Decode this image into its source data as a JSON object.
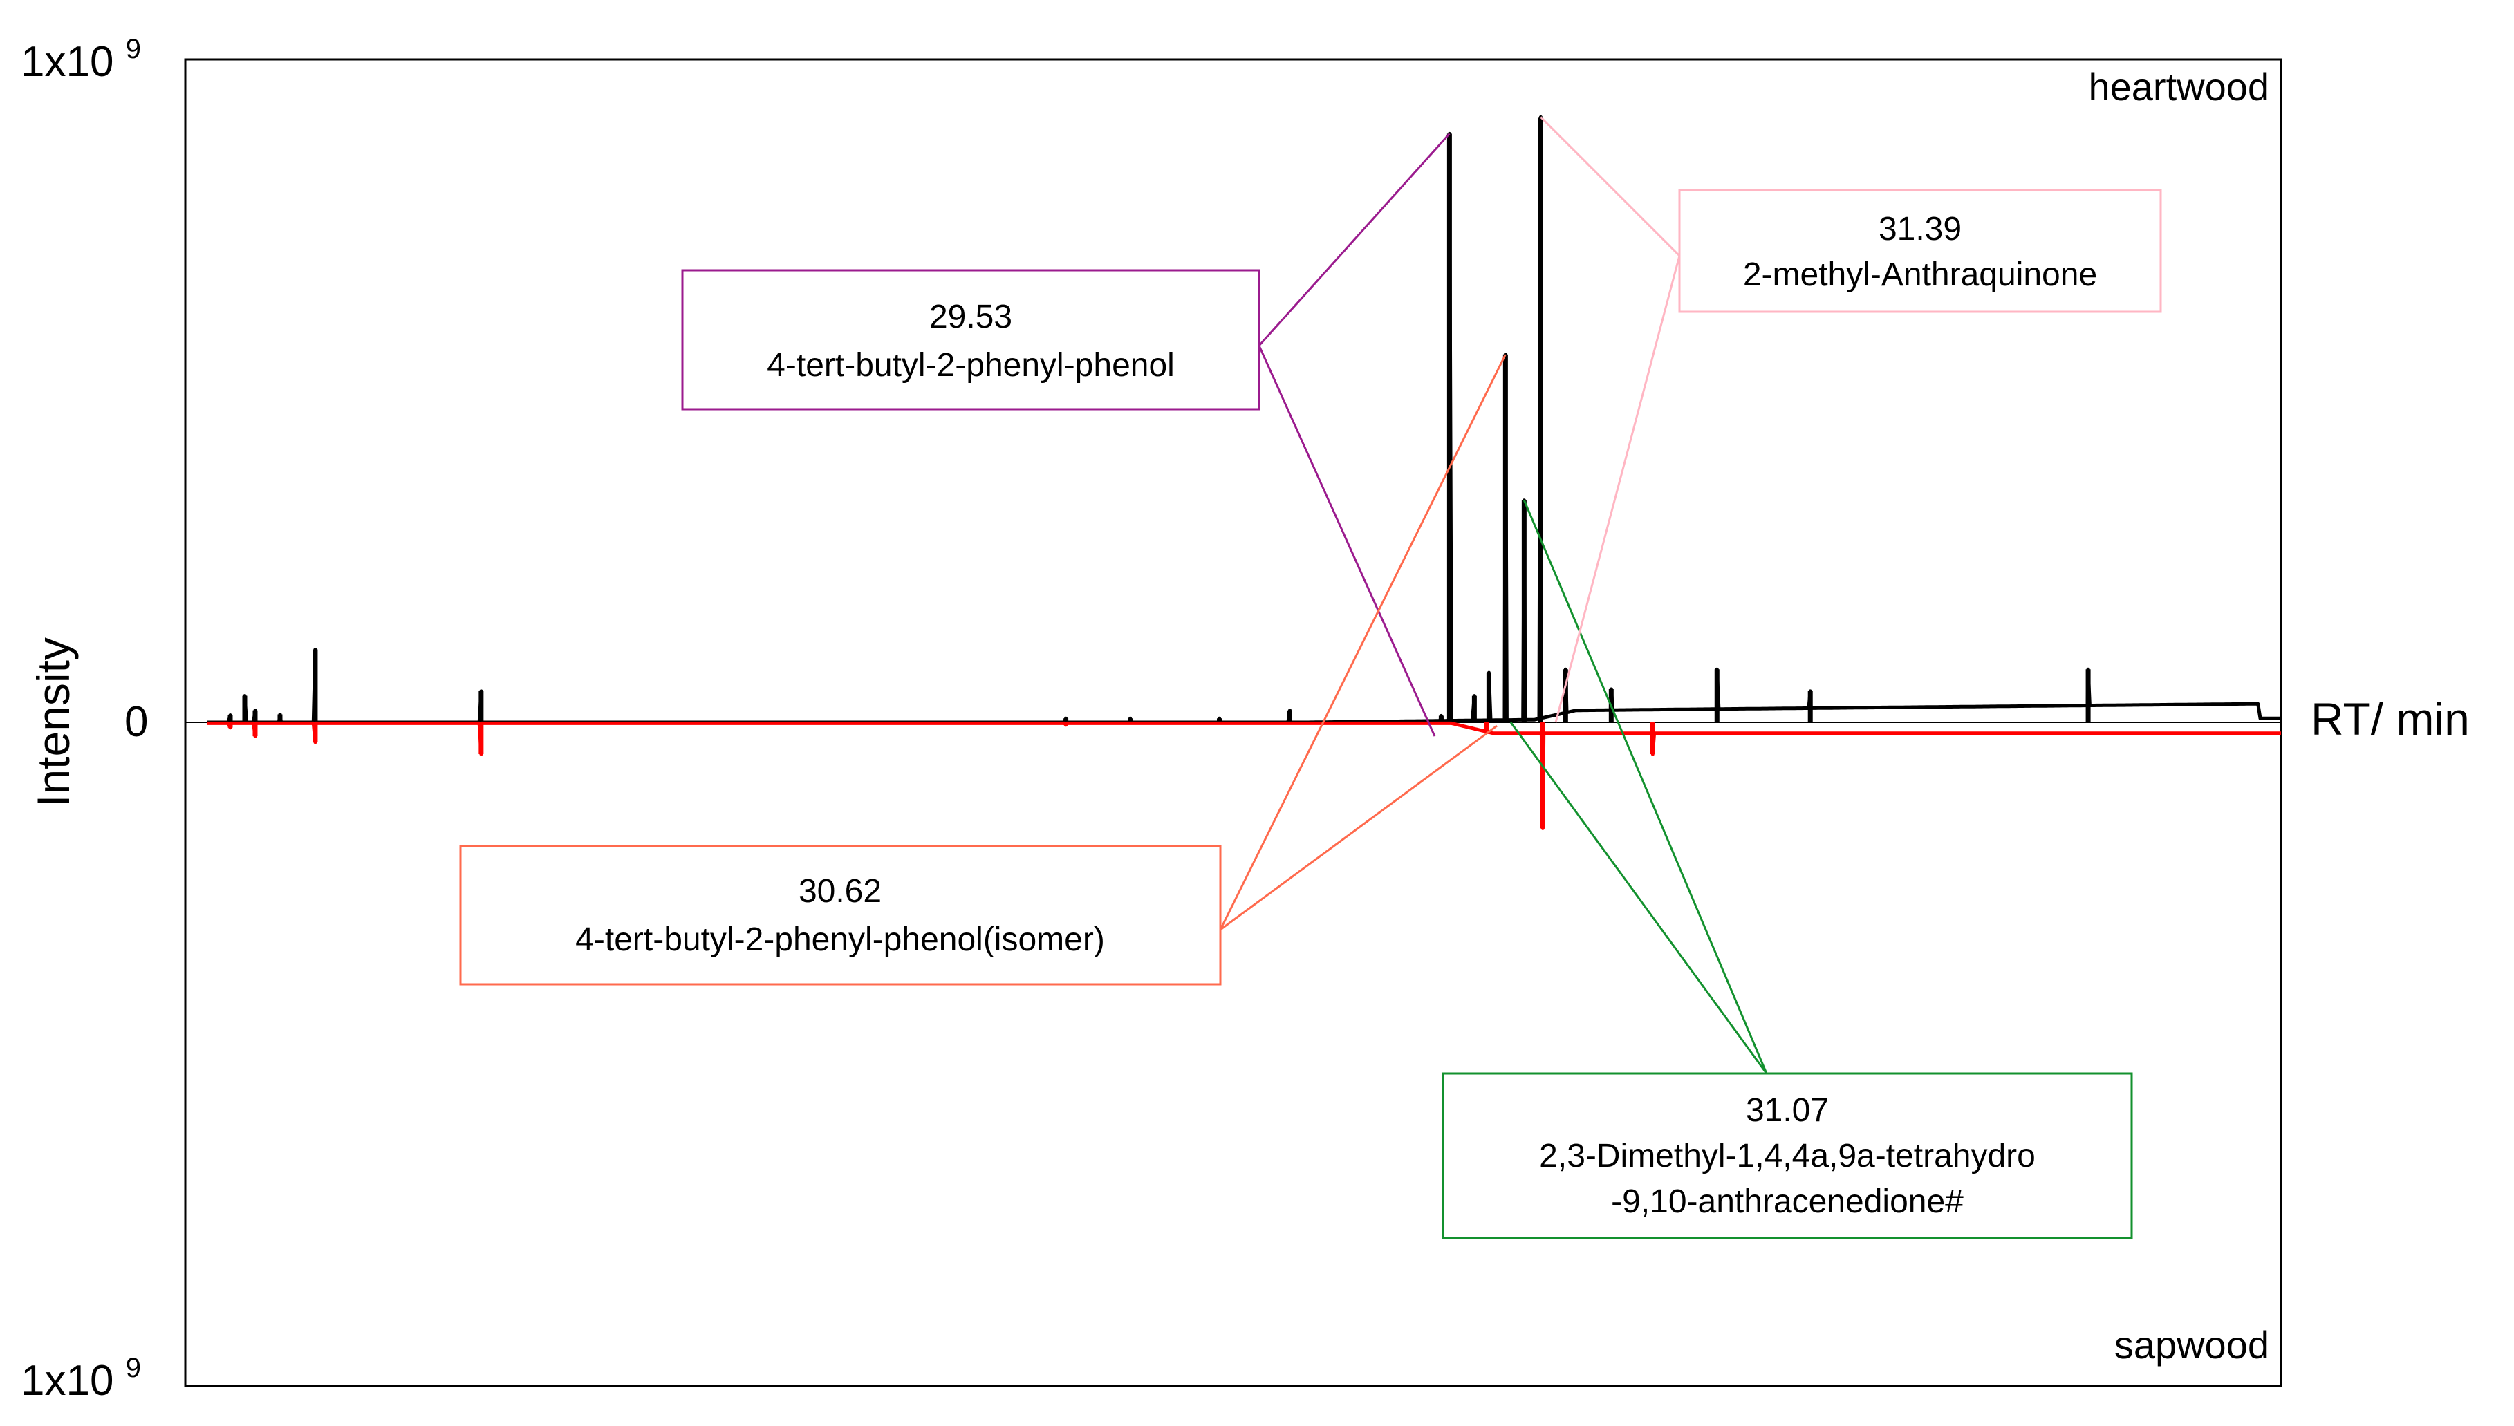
{
  "chart_data": {
    "type": "line",
    "xlabel": "RT/ min",
    "ylabel": "Intensity",
    "y_ticks": {
      "top": "1x10^9",
      "zero": "0",
      "bottom": "1x10^9"
    },
    "ylim": [
      -1000000000,
      1000000000
    ],
    "grid": false,
    "panel_labels": {
      "top": "heartwood",
      "bottom": "sapwood"
    },
    "series": [
      {
        "name": "heartwood",
        "color": "#000000",
        "direction": "up",
        "peaks": [
          {
            "at": 0.011,
            "height": 0.011
          },
          {
            "at": 0.018,
            "height": 0.04
          },
          {
            "at": 0.023,
            "height": 0.018
          },
          {
            "at": 0.035,
            "height": 0.012
          },
          {
            "at": 0.052,
            "height": 0.11
          },
          {
            "at": 0.132,
            "height": 0.047
          },
          {
            "at": 0.414,
            "height": 0.006
          },
          {
            "at": 0.445,
            "height": 0.006
          },
          {
            "at": 0.488,
            "height": 0.006
          },
          {
            "at": 0.522,
            "height": 0.018
          },
          {
            "at": 0.595,
            "height": 0.01
          },
          {
            "at": 0.599,
            "height": 0.888
          },
          {
            "at": 0.611,
            "height": 0.04
          },
          {
            "at": 0.618,
            "height": 0.075
          },
          {
            "at": 0.626,
            "height": 0.555
          },
          {
            "at": 0.635,
            "height": 0.335
          },
          {
            "at": 0.643,
            "height": 0.913
          },
          {
            "at": 0.655,
            "height": 0.08
          },
          {
            "at": 0.677,
            "height": 0.05
          },
          {
            "at": 0.728,
            "height": 0.08
          },
          {
            "at": 0.773,
            "height": 0.047
          },
          {
            "at": 0.907,
            "height": 0.08
          }
        ]
      },
      {
        "name": "sapwood",
        "color": "#ff0000",
        "direction": "down",
        "peaks": [
          {
            "at": 0.011,
            "height": 0.008
          },
          {
            "at": 0.023,
            "height": 0.021
          },
          {
            "at": 0.052,
            "height": 0.03
          },
          {
            "at": 0.132,
            "height": 0.048
          },
          {
            "at": 0.414,
            "height": 0.004
          },
          {
            "at": 0.617,
            "height": 0.015
          },
          {
            "at": 0.644,
            "height": 0.16
          },
          {
            "at": 0.697,
            "height": 0.048
          }
        ]
      }
    ],
    "annotations": [
      {
        "rt": "29.53",
        "name": "4-tert-butyl-2-phenyl-phenol",
        "color": "#9b1b8e",
        "series": "heartwood",
        "peak_index": 11
      },
      {
        "rt": "30.62",
        "name": "4-tert-butyl-2-phenyl-phenol(isomer)",
        "color": "#ff6a4d",
        "series": "heartwood",
        "peak_index": 14
      },
      {
        "rt": "31.07",
        "name_lines": [
          "2,3-Dimethyl-1,4,4a,9a-tetrahydro",
          "-9,10-anthracenedione#"
        ],
        "color": "#13912e",
        "series": "heartwood",
        "peak_index": 15
      },
      {
        "rt": "31.39",
        "name": "2-methyl-Anthraquinone",
        "color": "#ffb6c3",
        "series": "heartwood",
        "peak_index": 16
      }
    ]
  }
}
